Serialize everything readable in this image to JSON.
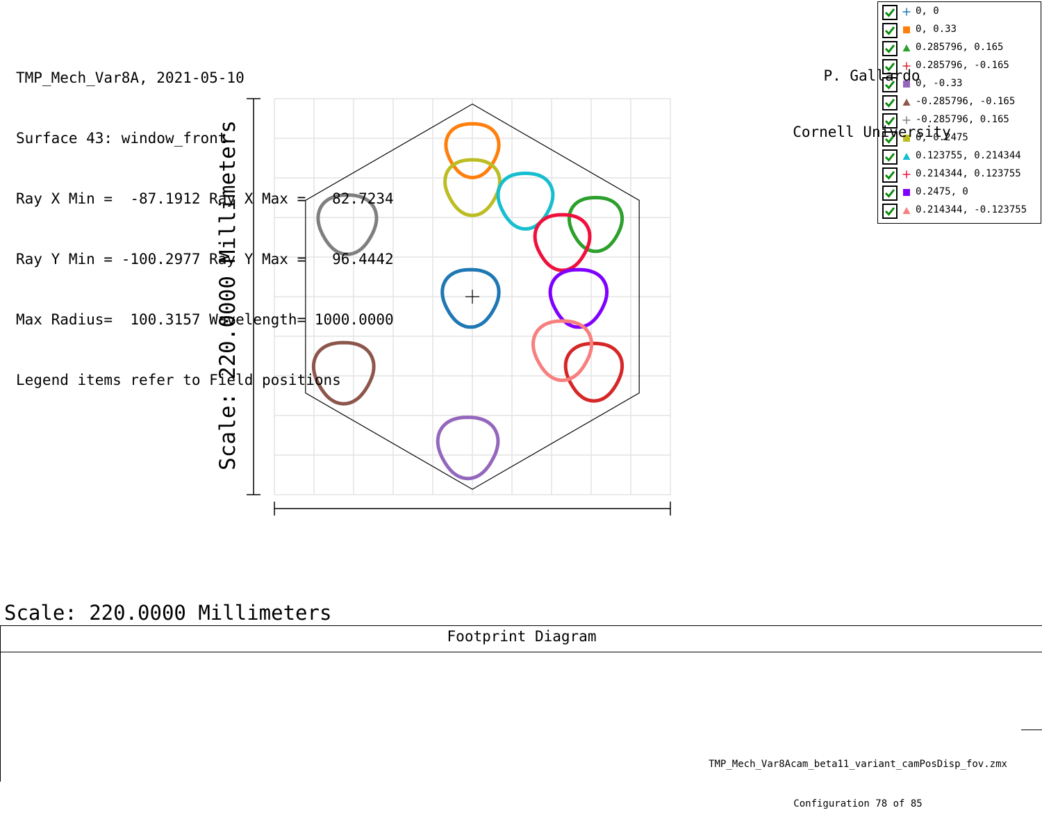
{
  "chart_data": {
    "type": "scatter",
    "title": "Footprint Diagram",
    "ylabel": "Scale: 220.0000 Millimeters",
    "xlim": [
      -110,
      110
    ],
    "ylim": [
      -110,
      110
    ],
    "grid": true,
    "legend_placement": "top-right",
    "aperture": {
      "shape": "hexagon",
      "vertices": [
        [
          0,
          107
        ],
        [
          92.7,
          53.5
        ],
        [
          92.7,
          -53.5
        ],
        [
          0,
          -107
        ],
        [
          -92.7,
          -53.5
        ],
        [
          -92.7,
          53.5
        ]
      ]
    },
    "chief_ray_marker": [
      0,
      0
    ],
    "series": [
      {
        "name": "0, 0",
        "marker": "cross",
        "color": "#1f77b4",
        "center": [
          -1,
          0
        ],
        "radius": 15.5
      },
      {
        "name": "0, 0.33",
        "marker": "square",
        "color": "#ff7f0e",
        "center": [
          0,
          82
        ],
        "radius": 14.5
      },
      {
        "name": "0.285796, 0.165",
        "marker": "triangle",
        "color": "#2ca02c",
        "center": [
          68.5,
          41
        ],
        "radius": 14.5
      },
      {
        "name": "0.285796, -0.165",
        "marker": "plus",
        "color": "#d62728",
        "center": [
          67.5,
          -41
        ],
        "radius": 15.5
      },
      {
        "name": "0, -0.33",
        "marker": "square",
        "color": "#9467bd",
        "center": [
          -2.5,
          -83
        ],
        "radius": 16.5
      },
      {
        "name": "-0.285796, -0.165",
        "marker": "triangle",
        "color": "#8c564b",
        "center": [
          -71.5,
          -41.5
        ],
        "radius": 16.5
      },
      {
        "name": "-0.285796, 0.165",
        "marker": "plus",
        "color": "#7f7f7f",
        "center": [
          -69.5,
          41
        ],
        "radius": 16
      },
      {
        "name": "0, 0.2475",
        "marker": "square",
        "color": "#bcbd22",
        "center": [
          0,
          61.5
        ],
        "radius": 15
      },
      {
        "name": "0.123755, 0.214344",
        "marker": "triangle",
        "color": "#17becf",
        "center": [
          29.5,
          54
        ],
        "radius": 15
      },
      {
        "name": "0.214344, 0.123755",
        "marker": "plus",
        "color": "#f0103c",
        "center": [
          50,
          31
        ],
        "radius": 15
      },
      {
        "name": "0.2475, 0",
        "marker": "square",
        "color": "#7f00ff",
        "center": [
          59,
          0
        ],
        "radius": 15.5
      },
      {
        "name": "0.214344, -0.123755",
        "marker": "triangle",
        "color": "#f77f7f",
        "center": [
          50,
          -29
        ],
        "radius": 16
      }
    ]
  },
  "scale_label": "Scale: 220.0000 Millimeters",
  "info": {
    "title": "Footprint Diagram",
    "lines": [
      "TMP_Mech_Var8A, 2021-05-10",
      "Surface 43: window_front",
      "Ray X Min =  -87.1912 Ray X Max =   82.7234",
      "Ray Y Min = -100.2977 Ray Y Max =   96.4442",
      "Max Radius=  100.3157 Wavelength= 1000.0000",
      "Legend items refer to Field positions"
    ],
    "author": "P. Gallardo",
    "institution": "Cornell University",
    "file": "TMP_Mech_Var8Acam_beta11_variant_camPosDisp_fov.zmx",
    "configuration": "Configuration 78 of 85"
  }
}
